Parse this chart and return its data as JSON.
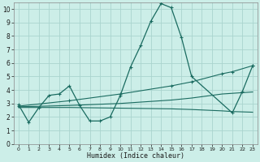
{
  "xlabel": "Humidex (Indice chaleur)",
  "bg_color": "#cceee8",
  "grid_color": "#aad4ce",
  "line_color": "#1a6b60",
  "xlim": [
    -0.5,
    23.5
  ],
  "ylim": [
    0,
    10.5
  ],
  "xticks": [
    0,
    1,
    2,
    3,
    4,
    5,
    6,
    7,
    8,
    9,
    10,
    11,
    12,
    13,
    14,
    15,
    16,
    17,
    18,
    19,
    20,
    21,
    22,
    23
  ],
  "yticks": [
    0,
    1,
    2,
    3,
    4,
    5,
    6,
    7,
    8,
    9,
    10
  ],
  "line1_x": [
    0,
    1,
    2,
    3,
    4,
    5,
    6,
    7,
    8,
    9,
    10,
    11,
    12,
    13,
    14,
    15,
    16,
    17,
    21,
    22,
    23
  ],
  "line1_y": [
    2.9,
    1.6,
    2.7,
    3.6,
    3.7,
    4.3,
    2.85,
    1.7,
    1.7,
    2.0,
    3.6,
    5.7,
    7.3,
    9.1,
    10.4,
    10.1,
    7.9,
    5.0,
    2.3,
    3.9,
    5.8
  ],
  "line2_x": [
    0,
    5,
    10,
    15,
    17,
    20,
    21,
    23
  ],
  "line2_y": [
    2.8,
    3.2,
    3.7,
    4.3,
    4.6,
    5.2,
    5.35,
    5.8
  ],
  "line3_x": [
    0,
    5,
    10,
    15,
    17,
    20,
    21,
    23
  ],
  "line3_y": [
    2.75,
    2.85,
    3.0,
    3.25,
    3.4,
    3.7,
    3.75,
    3.85
  ],
  "line4_x": [
    0,
    5,
    10,
    15,
    17,
    20,
    21,
    23
  ],
  "line4_y": [
    2.7,
    2.7,
    2.65,
    2.6,
    2.55,
    2.45,
    2.4,
    2.35
  ]
}
